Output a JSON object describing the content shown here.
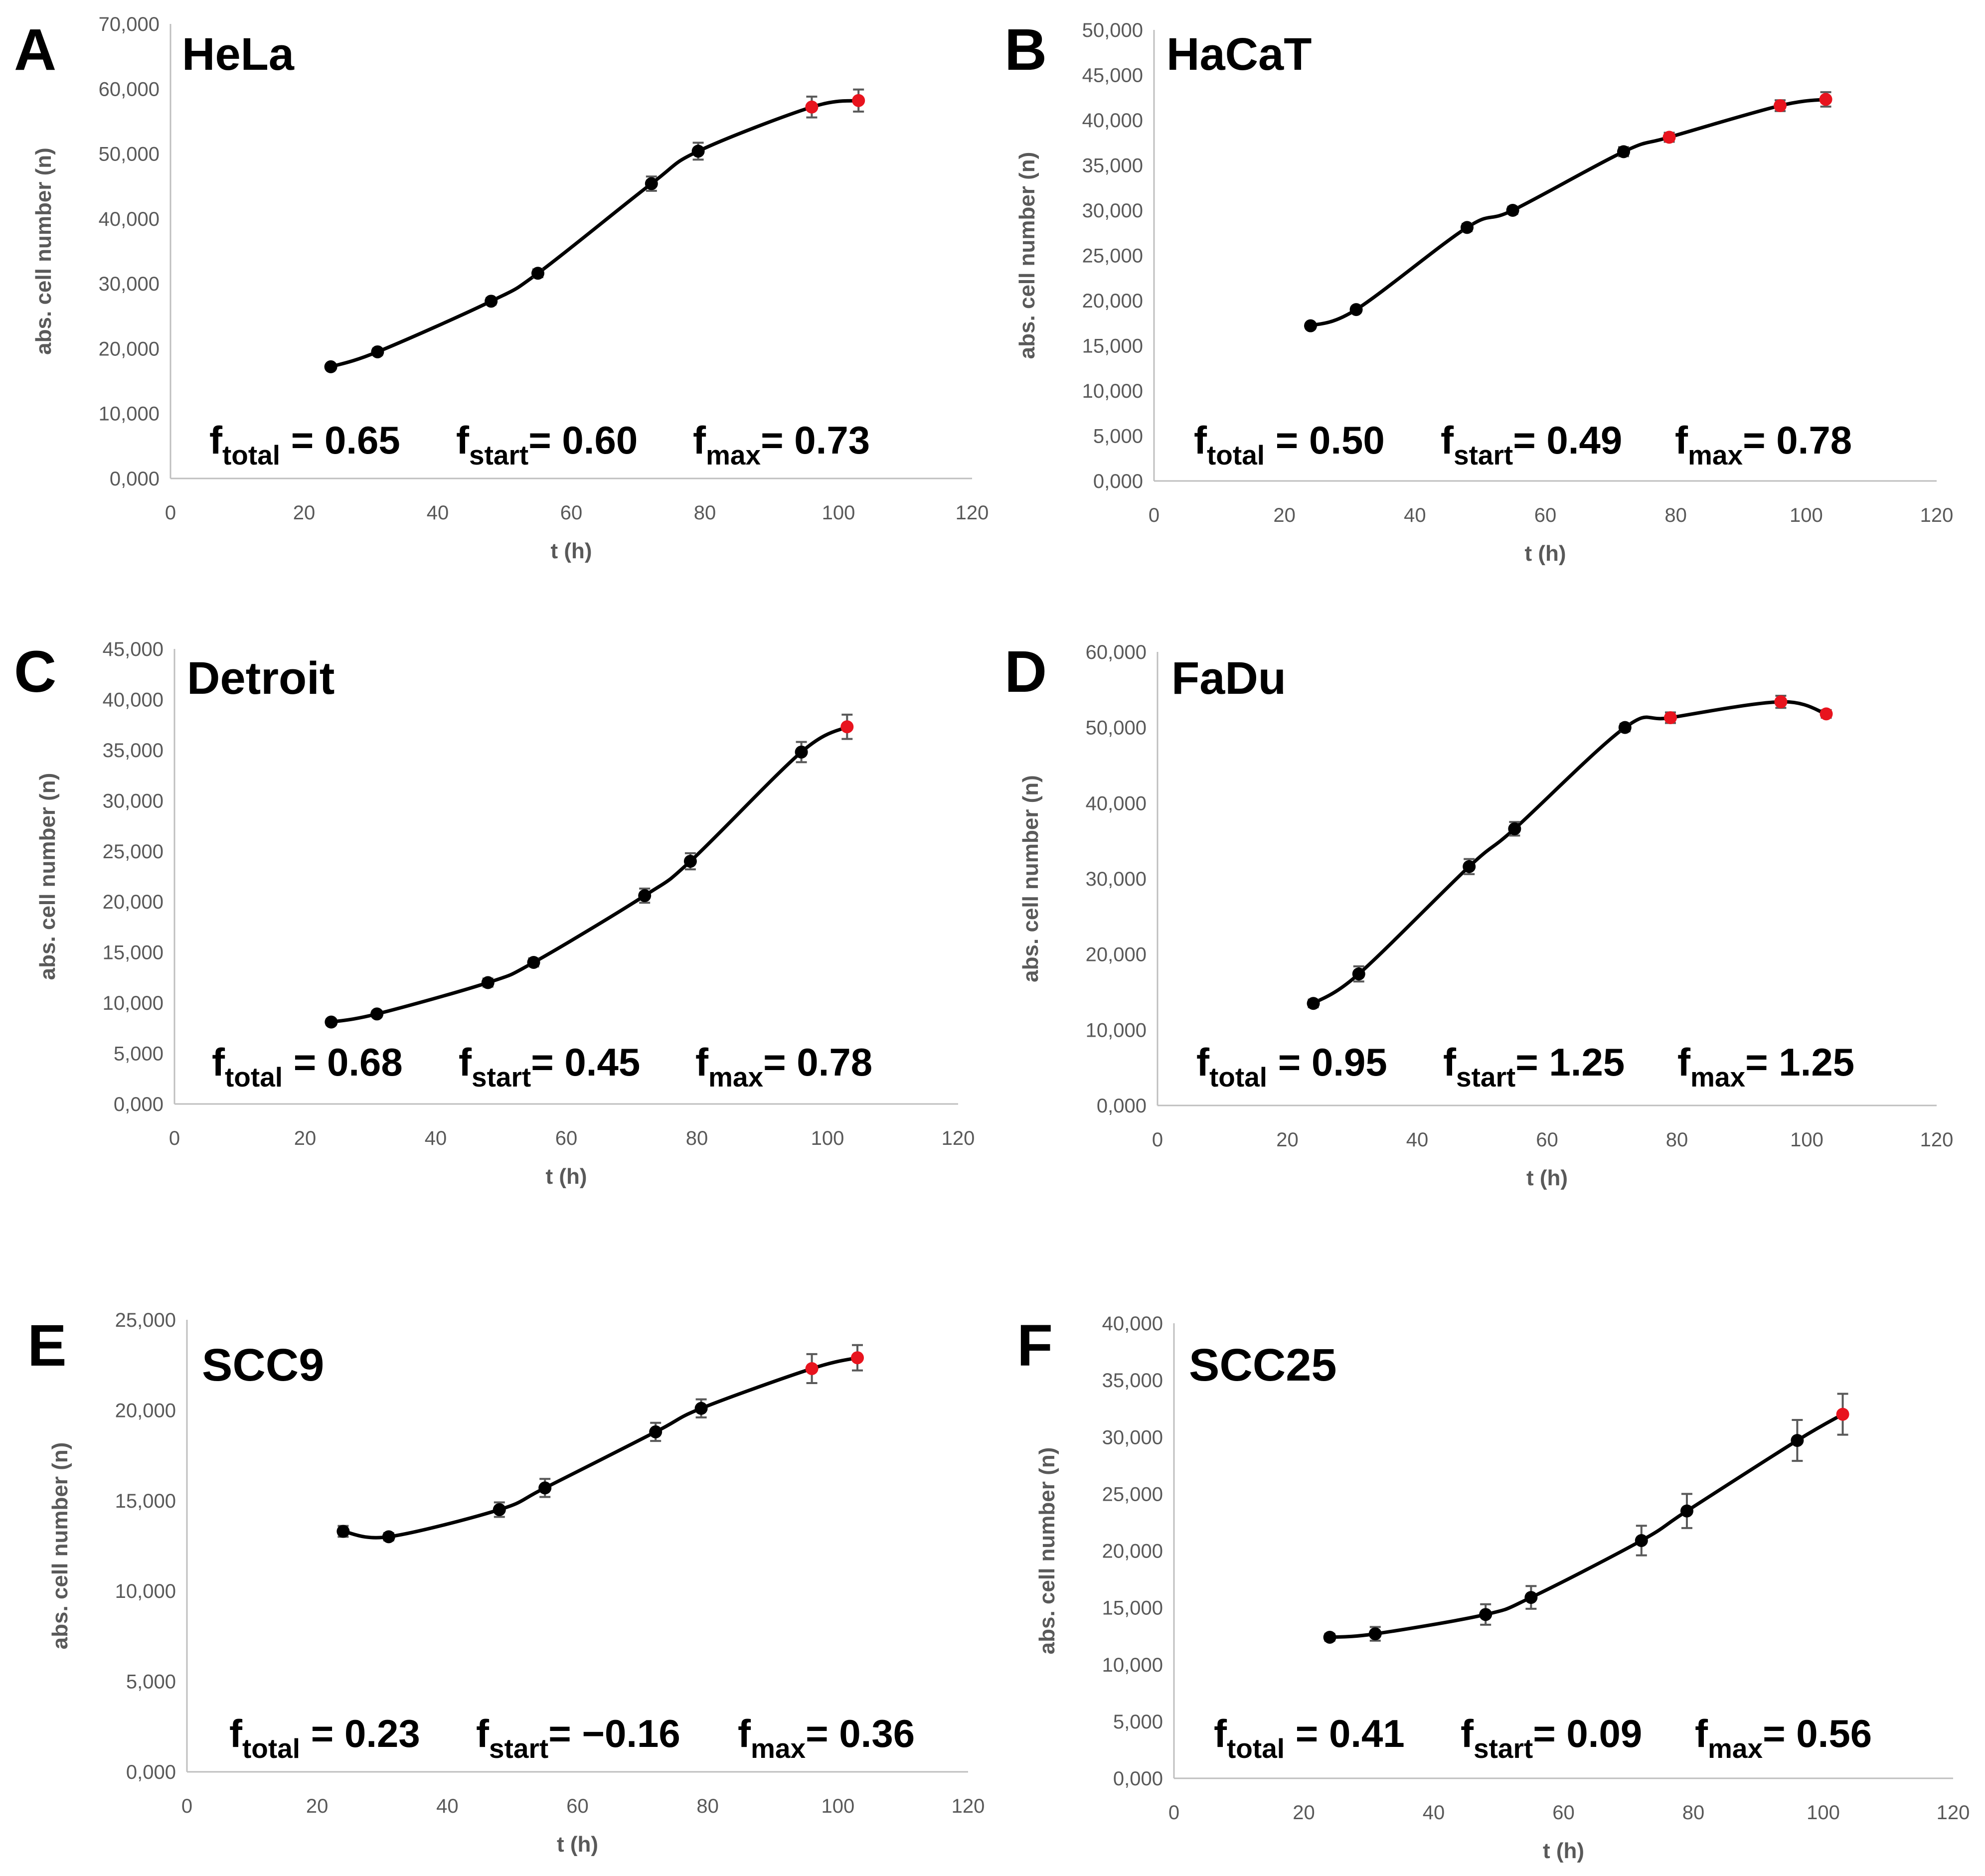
{
  "chart_data": [
    {
      "type": "line",
      "panel": "A",
      "title": "HeLa",
      "xlabel": "t (h)",
      "ylabel": "abs. cell number (n)",
      "xlim": [
        0,
        120
      ],
      "ylim": [
        0,
        70000
      ],
      "xticks": [
        0,
        20,
        40,
        60,
        80,
        100,
        120
      ],
      "xtick_labels": [
        "0",
        "20",
        "40",
        "60",
        "80",
        "100",
        "120"
      ],
      "yticks": [
        0,
        10000,
        20000,
        30000,
        40000,
        50000,
        60000,
        70000
      ],
      "ytick_labels": [
        "0,000",
        "10,000",
        "20,000",
        "30,000",
        "40,000",
        "50,000",
        "60,000",
        "70,000"
      ],
      "series": [
        {
          "name": "cell number",
          "x": [
            24,
            31,
            48,
            55,
            72,
            79,
            96,
            103
          ],
          "y": [
            17200,
            19500,
            27300,
            31600,
            45400,
            50400,
            57200,
            58200
          ],
          "err": [
            400,
            500,
            500,
            600,
            1100,
            1300,
            1600,
            1700
          ],
          "highlight": [
            false,
            false,
            false,
            false,
            false,
            false,
            true,
            true
          ]
        }
      ],
      "annotations": [
        {
          "base": "f",
          "sub": "total",
          "text": " = 0.65"
        },
        {
          "base": "f",
          "sub": "start",
          "text": "= 0.60"
        },
        {
          "base": "f",
          "sub": "max",
          "text": "= 0.73"
        }
      ]
    },
    {
      "type": "line",
      "panel": "B",
      "title": "HaCaT",
      "xlabel": "t (h)",
      "ylabel": "abs. cell number (n)",
      "xlim": [
        0,
        120
      ],
      "ylim": [
        0,
        50000
      ],
      "xticks": [
        0,
        20,
        40,
        60,
        80,
        100,
        120
      ],
      "xtick_labels": [
        "0",
        "20",
        "40",
        "60",
        "80",
        "100",
        "120"
      ],
      "yticks": [
        0,
        5000,
        10000,
        15000,
        20000,
        25000,
        30000,
        35000,
        40000,
        45000,
        50000
      ],
      "ytick_labels": [
        "0,000",
        "5,000",
        "10,000",
        "15,000",
        "20,000",
        "25,000",
        "30,000",
        "35,000",
        "40,000",
        "45,000",
        "50,000"
      ],
      "series": [
        {
          "name": "cell number",
          "x": [
            24,
            31,
            48,
            55,
            72,
            79,
            96,
            103
          ],
          "y": [
            17200,
            19000,
            28100,
            30000,
            36500,
            38100,
            41600,
            42300
          ],
          "err": [
            300,
            300,
            400,
            400,
            500,
            500,
            600,
            800
          ],
          "highlight": [
            false,
            false,
            false,
            false,
            false,
            true,
            true,
            true
          ]
        }
      ],
      "annotations": [
        {
          "base": "f",
          "sub": "total",
          "text": " = 0.50"
        },
        {
          "base": "f",
          "sub": "start",
          "text": "= 0.49"
        },
        {
          "base": "f",
          "sub": "max",
          "text": "= 0.78"
        }
      ]
    },
    {
      "type": "line",
      "panel": "C",
      "title": "Detroit",
      "xlabel": "t (h)",
      "ylabel": "abs. cell number (n)",
      "xlim": [
        0,
        120
      ],
      "ylim": [
        0,
        45000
      ],
      "xticks": [
        0,
        20,
        40,
        60,
        80,
        100,
        120
      ],
      "xtick_labels": [
        "0",
        "20",
        "40",
        "60",
        "80",
        "100",
        "120"
      ],
      "yticks": [
        0,
        5000,
        10000,
        15000,
        20000,
        25000,
        30000,
        35000,
        40000,
        45000
      ],
      "ytick_labels": [
        "0,000",
        "5,000",
        "10,000",
        "15,000",
        "20,000",
        "25,000",
        "30,000",
        "35,000",
        "40,000",
        "45,000"
      ],
      "series": [
        {
          "name": "cell number",
          "x": [
            24,
            31,
            48,
            55,
            72,
            79,
            96,
            103
          ],
          "y": [
            8100,
            8900,
            12000,
            14000,
            20600,
            24000,
            34800,
            37300
          ],
          "err": [
            300,
            300,
            400,
            400,
            700,
            800,
            1000,
            1200
          ],
          "highlight": [
            false,
            false,
            false,
            false,
            false,
            false,
            false,
            true
          ]
        }
      ],
      "annotations": [
        {
          "base": "f",
          "sub": "total",
          "text": " = 0.68"
        },
        {
          "base": "f",
          "sub": "start",
          "text": "= 0.45"
        },
        {
          "base": "f",
          "sub": "max",
          "text": "= 0.78"
        }
      ]
    },
    {
      "type": "line",
      "panel": "D",
      "title": "FaDu",
      "xlabel": "t (h)",
      "ylabel": "abs. cell number (n)",
      "xlim": [
        0,
        120
      ],
      "ylim": [
        0,
        60000
      ],
      "xticks": [
        0,
        20,
        40,
        60,
        80,
        100,
        120
      ],
      "xtick_labels": [
        "0",
        "20",
        "40",
        "60",
        "80",
        "100",
        "120"
      ],
      "yticks": [
        0,
        10000,
        20000,
        30000,
        40000,
        50000,
        60000
      ],
      "ytick_labels": [
        "0,000",
        "10,000",
        "20,000",
        "30,000",
        "40,000",
        "50,000",
        "60,000"
      ],
      "series": [
        {
          "name": "cell number",
          "x": [
            24,
            31,
            48,
            55,
            72,
            79,
            96,
            103
          ],
          "y": [
            13500,
            17400,
            31600,
            36600,
            50000,
            51300,
            53400,
            51800
          ],
          "err": [
            500,
            1000,
            1000,
            900,
            500,
            700,
            800,
            500
          ],
          "highlight": [
            false,
            false,
            false,
            false,
            false,
            true,
            true,
            true
          ]
        }
      ],
      "annotations": [
        {
          "base": "f",
          "sub": "total",
          "text": " = 0.95"
        },
        {
          "base": "f",
          "sub": "start",
          "text": "= 1.25"
        },
        {
          "base": "f",
          "sub": "max",
          "text": "= 1.25"
        }
      ]
    },
    {
      "type": "line",
      "panel": "E",
      "title": "SCC9",
      "xlabel": "t (h)",
      "ylabel": "abs. cell number (n)",
      "xlim": [
        0,
        120
      ],
      "ylim": [
        0,
        25000
      ],
      "xticks": [
        0,
        20,
        40,
        60,
        80,
        100,
        120
      ],
      "xtick_labels": [
        "0",
        "20",
        "40",
        "60",
        "80",
        "100",
        "120"
      ],
      "yticks": [
        0,
        5000,
        10000,
        15000,
        20000,
        25000
      ],
      "ytick_labels": [
        "0,000",
        "5,000",
        "10,000",
        "15,000",
        "20,000",
        "25,000"
      ],
      "series": [
        {
          "name": "cell number",
          "x": [
            24,
            31,
            48,
            55,
            72,
            79,
            96,
            103
          ],
          "y": [
            13300,
            13000,
            14500,
            15700,
            18800,
            20100,
            22300,
            22900
          ],
          "err": [
            300,
            200,
            400,
            500,
            500,
            500,
            800,
            700
          ],
          "highlight": [
            false,
            false,
            false,
            false,
            false,
            false,
            true,
            true
          ]
        }
      ],
      "annotations": [
        {
          "base": "f",
          "sub": "total",
          "text": " = 0.23"
        },
        {
          "base": "f",
          "sub": "start",
          "text": "= −0.16"
        },
        {
          "base": "f",
          "sub": "max",
          "text": "= 0.36"
        }
      ]
    },
    {
      "type": "line",
      "panel": "F",
      "title": "SCC25",
      "xlabel": "t (h)",
      "ylabel": "abs. cell number (n)",
      "xlim": [
        0,
        120
      ],
      "ylim": [
        0,
        40000
      ],
      "xticks": [
        0,
        20,
        40,
        60,
        80,
        100,
        120
      ],
      "xtick_labels": [
        "0",
        "20",
        "40",
        "60",
        "80",
        "100",
        "120"
      ],
      "yticks": [
        0,
        5000,
        10000,
        15000,
        20000,
        25000,
        30000,
        35000,
        40000
      ],
      "ytick_labels": [
        "0,000",
        "5,000",
        "10,000",
        "15,000",
        "20,000",
        "25,000",
        "30,000",
        "35,000",
        "40,000"
      ],
      "series": [
        {
          "name": "cell number",
          "x": [
            24,
            31,
            48,
            55,
            72,
            79,
            96,
            103
          ],
          "y": [
            12400,
            12700,
            14400,
            15900,
            20900,
            23500,
            29700,
            32000
          ],
          "err": [
            300,
            600,
            900,
            1000,
            1300,
            1500,
            1800,
            1800
          ],
          "highlight": [
            false,
            false,
            false,
            false,
            false,
            false,
            false,
            true
          ]
        }
      ],
      "annotations": [
        {
          "base": "f",
          "sub": "total",
          "text": " = 0.41"
        },
        {
          "base": "f",
          "sub": "start",
          "text": "= 0.09"
        },
        {
          "base": "f",
          "sub": "max",
          "text": "= 0.56"
        }
      ]
    }
  ],
  "colors": {
    "line": "#000000",
    "marker": "#000000",
    "highlight": "#e8141e",
    "axis": "#bfbfbf",
    "tick_text": "#595959",
    "error_bar": "#595959"
  }
}
